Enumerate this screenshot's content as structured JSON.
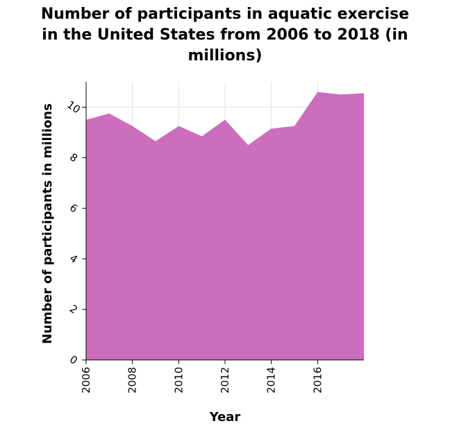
{
  "chart_data": {
    "type": "area",
    "title": "Number of participants in aquatic exercise\nin the United States from 2006 to 2018 (in\nmillions)",
    "xlabel": "Year",
    "ylabel": "Number of participants in millions",
    "x": [
      2006,
      2007,
      2008,
      2009,
      2010,
      2011,
      2012,
      2013,
      2014,
      2015,
      2016,
      2017,
      2018
    ],
    "series": [
      {
        "values": [
          9.5,
          9.75,
          9.25,
          8.65,
          9.25,
          8.85,
          9.5,
          8.5,
          9.15,
          9.25,
          10.6,
          10.5,
          10.55
        ]
      }
    ],
    "xlim": [
      2006,
      2018
    ],
    "ylim": [
      0,
      11
    ],
    "xticks": [
      "2006",
      "2008",
      "2010",
      "2012",
      "2014",
      "2016"
    ],
    "yticks": [
      "0",
      "2",
      "4",
      "6",
      "8",
      "10"
    ],
    "grid": true,
    "colors": {
      "area": "#cc6dbd",
      "grid": "#e0e0e0",
      "axis": "#000000"
    }
  }
}
